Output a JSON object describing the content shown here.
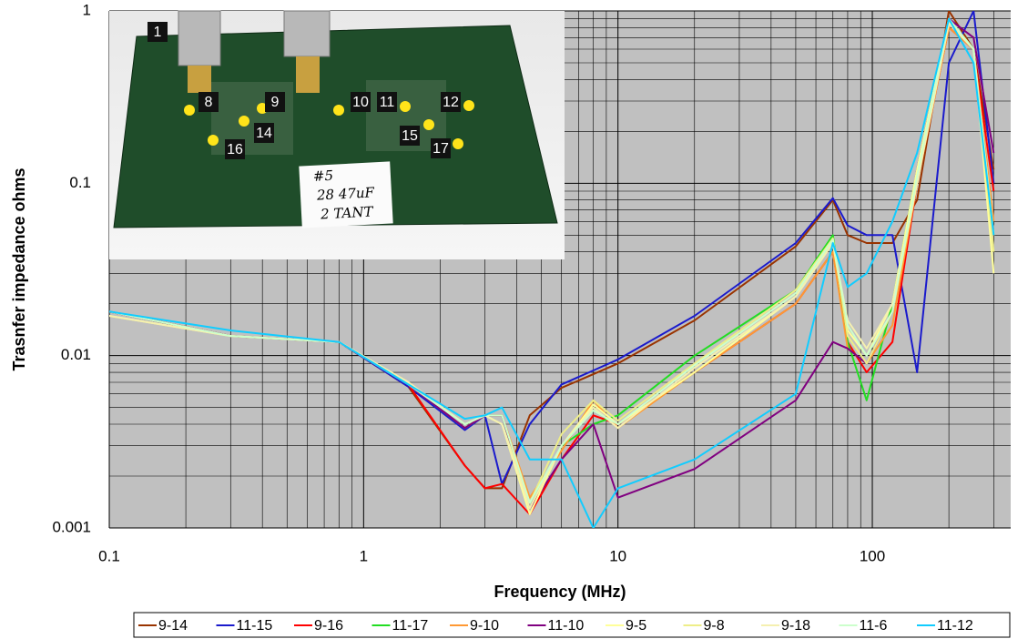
{
  "chart_data": {
    "type": "line",
    "xlabel": "Frequency (MHz)",
    "ylabel": "Trasnfer impedance ohms",
    "xscale": "log",
    "yscale": "log",
    "grid": true,
    "xlim": [
      0.1,
      350
    ],
    "ylim": [
      0.001,
      1
    ],
    "xticks": [
      0.1,
      1,
      10,
      100
    ],
    "yticks": [
      0.001,
      0.01,
      0.1,
      1
    ],
    "xminor": [
      0.2,
      0.3,
      0.4,
      0.5,
      0.6,
      0.7,
      0.8,
      0.9,
      2,
      3,
      4,
      5,
      6,
      7,
      8,
      9,
      20,
      30,
      40,
      50,
      60,
      70,
      80,
      90,
      200,
      300
    ],
    "yminor": [
      0.002,
      0.003,
      0.004,
      0.005,
      0.006,
      0.007,
      0.008,
      0.009,
      0.02,
      0.03,
      0.04,
      0.05,
      0.06,
      0.07,
      0.08,
      0.09,
      0.2,
      0.3,
      0.4,
      0.5,
      0.6,
      0.7,
      0.8,
      0.9
    ],
    "legend": "bottom",
    "x": [
      0.1,
      0.3,
      0.8,
      1.5,
      2.5,
      3,
      3.5,
      4.5,
      6,
      8,
      10,
      20,
      50,
      70,
      80,
      95,
      120,
      150,
      200,
      250,
      300
    ],
    "series": [
      {
        "name": "9-14",
        "color": "#993300",
        "values": [
          0.018,
          0.013,
          0.012,
          0.0066,
          0.0023,
          0.0017,
          0.0017,
          0.0045,
          0.0065,
          0.0078,
          0.009,
          0.016,
          0.043,
          0.08,
          0.05,
          0.045,
          0.045,
          0.08,
          1.0,
          0.6,
          0.12
        ]
      },
      {
        "name": "11-15",
        "color": "#1a1acc",
        "values": [
          0.018,
          0.013,
          0.012,
          0.0066,
          0.0037,
          0.0045,
          0.0018,
          0.004,
          0.0068,
          0.0082,
          0.0095,
          0.017,
          0.045,
          0.082,
          0.057,
          0.05,
          0.05,
          0.008,
          0.5,
          1.0,
          0.1
        ]
      },
      {
        "name": "9-16",
        "color": "#ff0000",
        "values": [
          0.018,
          0.013,
          0.012,
          0.0068,
          0.0023,
          0.0017,
          0.0018,
          0.0012,
          0.0025,
          0.0045,
          0.004,
          0.008,
          0.02,
          0.04,
          0.012,
          0.008,
          0.012,
          0.1,
          0.8,
          0.6,
          0.09
        ]
      },
      {
        "name": "11-17",
        "color": "#22dd22",
        "values": [
          0.018,
          0.013,
          0.012,
          0.0068,
          0.0038,
          0.0045,
          0.0045,
          0.0013,
          0.003,
          0.004,
          0.0045,
          0.01,
          0.024,
          0.05,
          0.012,
          0.0055,
          0.02,
          0.12,
          0.9,
          0.6,
          0.05
        ]
      },
      {
        "name": "9-10",
        "color": "#ff9933",
        "values": [
          0.018,
          0.013,
          0.012,
          0.0068,
          0.0038,
          0.0045,
          0.0045,
          0.0015,
          0.0028,
          0.0055,
          0.0038,
          0.008,
          0.02,
          0.04,
          0.011,
          0.009,
          0.015,
          0.1,
          0.8,
          0.6,
          0.06
        ]
      },
      {
        "name": "11-10",
        "color": "#800080",
        "values": [
          0.018,
          0.013,
          0.012,
          0.0068,
          0.0038,
          0.0045,
          0.0045,
          0.0013,
          0.0025,
          0.004,
          0.0015,
          0.0022,
          0.0055,
          0.012,
          0.011,
          0.009,
          0.018,
          0.12,
          0.9,
          0.7,
          0.15
        ]
      },
      {
        "name": "9-5",
        "color": "#ffff99",
        "values": [
          0.017,
          0.013,
          0.012,
          0.007,
          0.004,
          0.0045,
          0.004,
          0.0012,
          0.003,
          0.0052,
          0.004,
          0.008,
          0.022,
          0.045,
          0.014,
          0.01,
          0.02,
          0.12,
          0.9,
          0.6,
          0.03
        ]
      },
      {
        "name": "9-8",
        "color": "#eeee88",
        "values": [
          0.017,
          0.013,
          0.012,
          0.007,
          0.004,
          0.0045,
          0.004,
          0.0014,
          0.0035,
          0.0055,
          0.0042,
          0.009,
          0.024,
          0.048,
          0.013,
          0.009,
          0.018,
          0.1,
          0.85,
          0.6,
          0.04
        ]
      },
      {
        "name": "9-18",
        "color": "#f5f0b0",
        "values": [
          0.017,
          0.013,
          0.012,
          0.007,
          0.004,
          0.0045,
          0.004,
          0.0013,
          0.003,
          0.005,
          0.0038,
          0.0085,
          0.022,
          0.045,
          0.016,
          0.011,
          0.02,
          0.1,
          0.85,
          0.6,
          0.05
        ]
      },
      {
        "name": "11-6",
        "color": "#ccffcc",
        "values": [
          0.018,
          0.013,
          0.012,
          0.0068,
          0.004,
          0.0045,
          0.0045,
          0.0014,
          0.003,
          0.0048,
          0.004,
          0.0088,
          0.023,
          0.047,
          0.015,
          0.01,
          0.018,
          0.11,
          0.9,
          0.6,
          0.05
        ]
      },
      {
        "name": "11-12",
        "color": "#11ccff",
        "values": [
          0.018,
          0.014,
          0.012,
          0.0068,
          0.0043,
          0.0045,
          0.005,
          0.0025,
          0.0025,
          0.001,
          0.0017,
          0.0025,
          0.006,
          0.045,
          0.025,
          0.03,
          0.06,
          0.15,
          0.9,
          0.5,
          0.05
        ]
      }
    ],
    "inset": {
      "labels": [
        "1",
        "8",
        "9",
        "10",
        "11",
        "12",
        "14",
        "15",
        "16",
        "17"
      ],
      "note": [
        "#5",
        "28 47uF",
        "2 TANT"
      ]
    }
  }
}
